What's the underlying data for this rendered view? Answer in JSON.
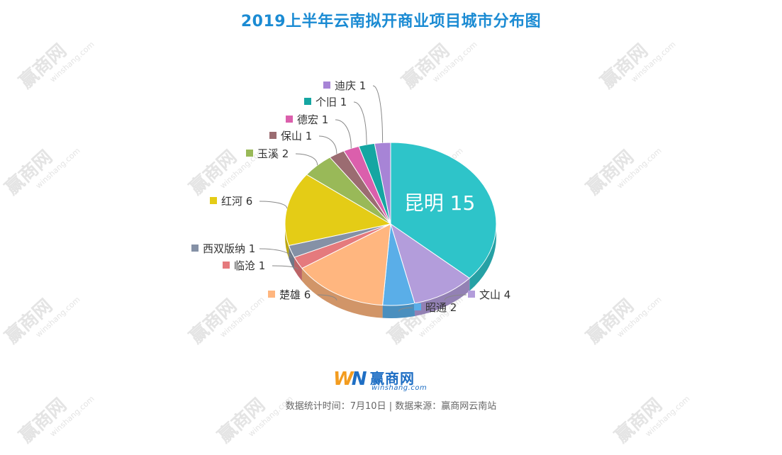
{
  "title": "2019上半年云南拟开商业项目城市分布图",
  "logo": {
    "mark_w": "W",
    "mark_n": "N",
    "name_cn": "赢商网",
    "name_en": "winshang.com"
  },
  "footnote": "数据统计时间：7月10日 | 数据来源：赢商网云南站",
  "watermark": {
    "name_cn": "赢商网",
    "name_en": "winshang.com"
  },
  "chart_data": {
    "type": "pie",
    "title": "2019上半年云南拟开商业项目城市分布图",
    "style": "3d",
    "series": [
      {
        "name": "昆明",
        "value": 15,
        "color": "#2ec4c9"
      },
      {
        "name": "文山",
        "value": 4,
        "color": "#b39ddb"
      },
      {
        "name": "昭通",
        "value": 2,
        "color": "#5aaee8"
      },
      {
        "name": "楚雄",
        "value": 6,
        "color": "#ffb67f"
      },
      {
        "name": "临沧",
        "value": 1,
        "color": "#e57a7d"
      },
      {
        "name": "西双版纳",
        "value": 1,
        "color": "#8591a6"
      },
      {
        "name": "红河",
        "value": 6,
        "color": "#e4cc16"
      },
      {
        "name": "玉溪",
        "value": 2,
        "color": "#99b958"
      },
      {
        "name": "保山",
        "value": 1,
        "color": "#9b6c71"
      },
      {
        "name": "德宏",
        "value": 1,
        "color": "#db5fac"
      },
      {
        "name": "个旧",
        "value": 1,
        "color": "#15a6a2"
      },
      {
        "name": "迪庆",
        "value": 1,
        "color": "#a784d6"
      }
    ]
  }
}
